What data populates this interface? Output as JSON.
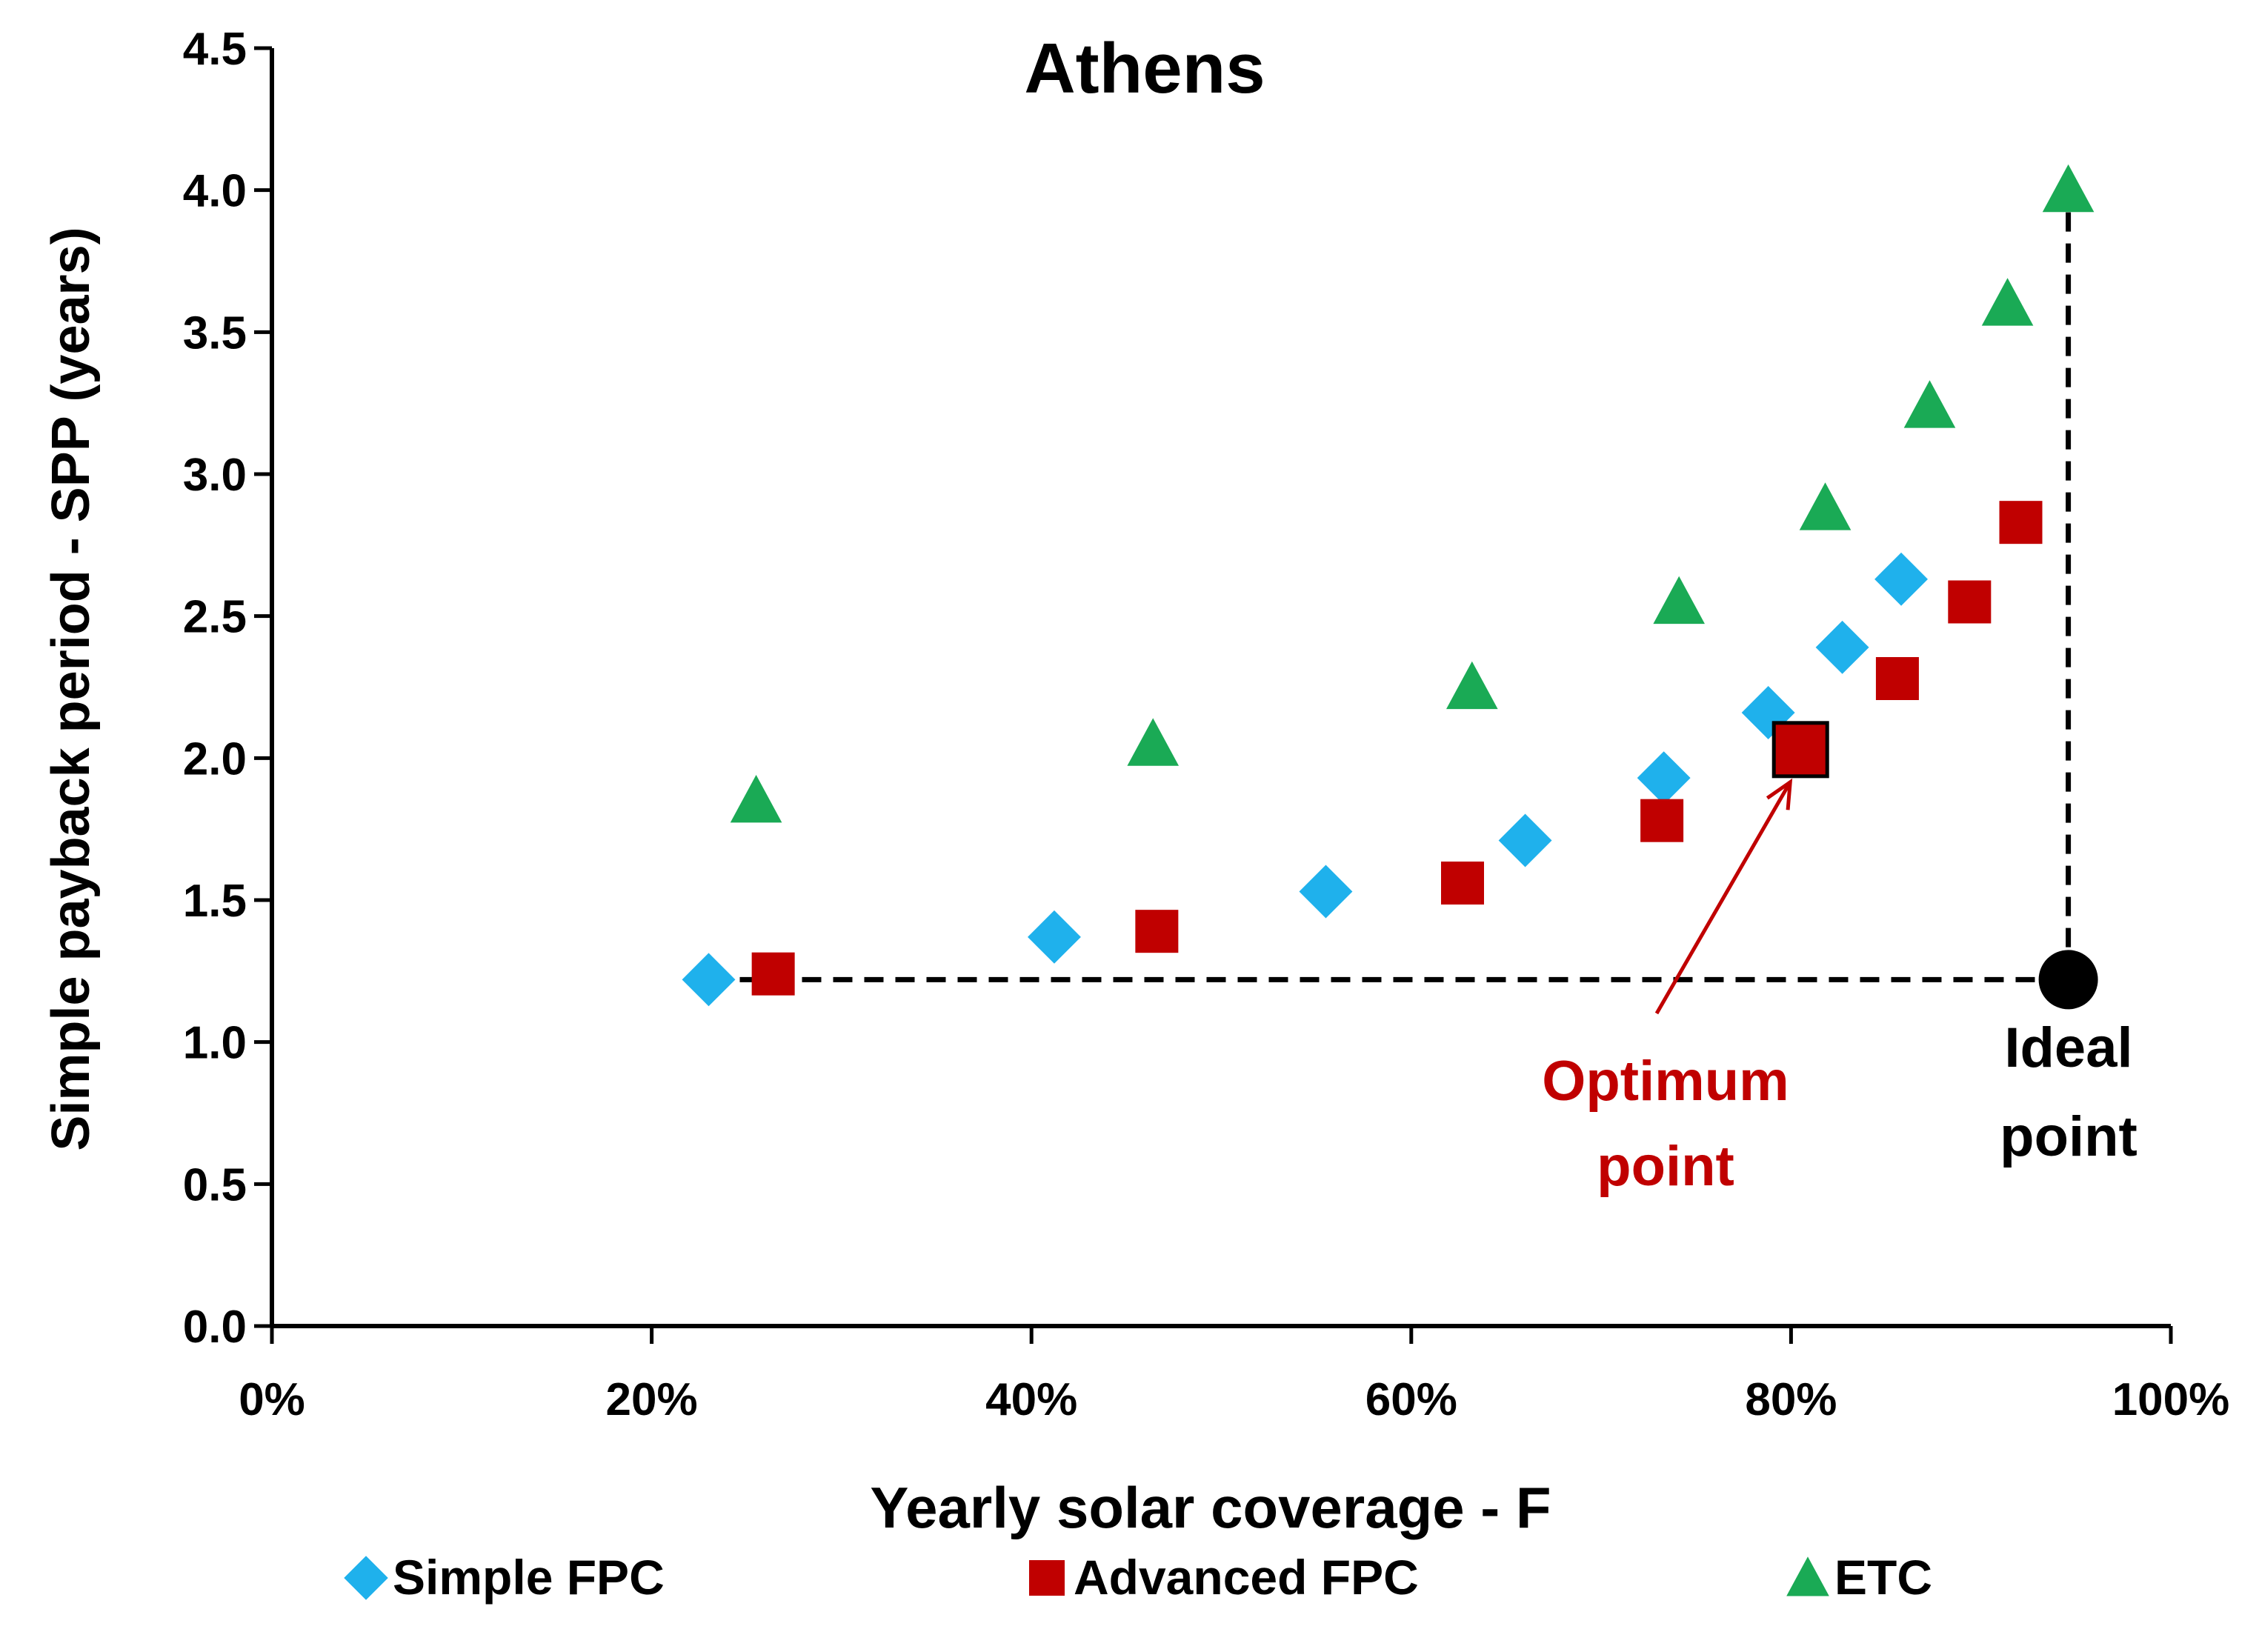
{
  "chart_data": {
    "type": "scatter",
    "title": "Athens",
    "xlabel": "Yearly solar coverage - F",
    "ylabel": "Simple payback period - SPP (years)",
    "xlim": [
      0,
      100
    ],
    "ylim": [
      0,
      4.5
    ],
    "x_ticks": [
      "0%",
      "20%",
      "40%",
      "60%",
      "80%",
      "100%"
    ],
    "x_tick_values": [
      0,
      20,
      40,
      60,
      80,
      100
    ],
    "y_ticks": [
      "0.0",
      "0.5",
      "1.0",
      "1.5",
      "2.0",
      "2.5",
      "3.0",
      "3.5",
      "4.0",
      "4.5"
    ],
    "y_tick_values": [
      0,
      0.5,
      1.0,
      1.5,
      2.0,
      2.5,
      3.0,
      3.5,
      4.0,
      4.5
    ],
    "grid": false,
    "legend_position": "bottom",
    "series": [
      {
        "name": "Simple FPC",
        "marker": "diamond",
        "color": "#1fb1ec",
        "points": [
          {
            "x": 23,
            "y": 1.22
          },
          {
            "x": 41.2,
            "y": 1.37
          },
          {
            "x": 55.5,
            "y": 1.53
          },
          {
            "x": 66.0,
            "y": 1.71
          },
          {
            "x": 73.3,
            "y": 1.93
          },
          {
            "x": 78.8,
            "y": 2.16
          },
          {
            "x": 82.7,
            "y": 2.39
          },
          {
            "x": 85.8,
            "y": 2.63
          }
        ]
      },
      {
        "name": "Advanced FPC",
        "marker": "square",
        "color": "#c00000",
        "points": [
          {
            "x": 26.4,
            "y": 1.24
          },
          {
            "x": 46.6,
            "y": 1.39
          },
          {
            "x": 62.7,
            "y": 1.56
          },
          {
            "x": 73.2,
            "y": 1.78
          },
          {
            "x": 80.5,
            "y": 2.03
          },
          {
            "x": 85.6,
            "y": 2.28
          },
          {
            "x": 89.4,
            "y": 2.55
          },
          {
            "x": 92.1,
            "y": 2.83
          }
        ]
      },
      {
        "name": "ETC",
        "marker": "triangle",
        "color": "#1aaa55",
        "points": [
          {
            "x": 25.5,
            "y": 1.85
          },
          {
            "x": 46.4,
            "y": 2.05
          },
          {
            "x": 63.2,
            "y": 2.25
          },
          {
            "x": 74.1,
            "y": 2.55
          },
          {
            "x": 81.8,
            "y": 2.88
          },
          {
            "x": 87.3,
            "y": 3.24
          },
          {
            "x": 91.4,
            "y": 3.6
          },
          {
            "x": 94.6,
            "y": 4.0
          }
        ]
      }
    ],
    "ideal_point": {
      "x": 94.6,
      "y": 1.22,
      "label_line1": "Ideal",
      "label_line2": "point"
    },
    "optimum_point": {
      "x": 80.5,
      "y": 2.03,
      "label_line1": "Optimum",
      "label_line2": "point"
    },
    "annotation_color": "#c00000"
  }
}
